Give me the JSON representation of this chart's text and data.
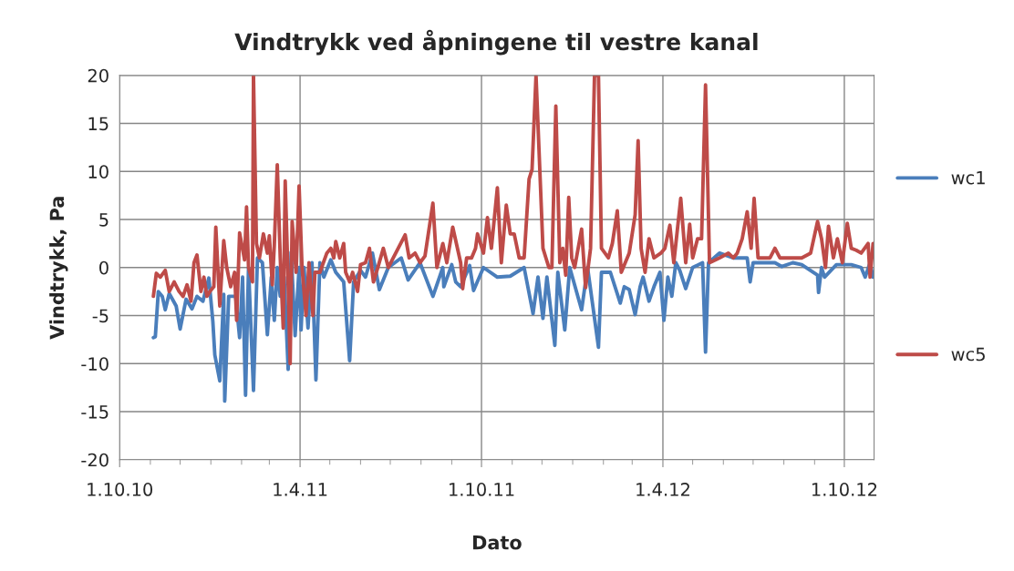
{
  "chart_data": {
    "type": "line",
    "title": "Vindtrykk ved åpningene til vestre kanal",
    "xlabel": "Dato",
    "ylabel": "Vindtrykk, Pa",
    "xlim": [
      "2010-10-01",
      "2012-10-31"
    ],
    "ylim": [
      -20,
      20
    ],
    "yticks": [
      -20,
      -15,
      -10,
      -5,
      0,
      5,
      10,
      15,
      20
    ],
    "xticks": [
      {
        "value": "2010-10-01",
        "label": "1.10.10"
      },
      {
        "value": "2010-11-01",
        "label": null
      },
      {
        "value": "2010-12-01",
        "label": null
      },
      {
        "value": "2011-01-01",
        "label": null
      },
      {
        "value": "2011-02-01",
        "label": null
      },
      {
        "value": "2011-03-01",
        "label": null
      },
      {
        "value": "2011-04-01",
        "label": "1.4.11"
      },
      {
        "value": "2011-05-01",
        "label": null
      },
      {
        "value": "2011-06-01",
        "label": null
      },
      {
        "value": "2011-07-01",
        "label": null
      },
      {
        "value": "2011-08-01",
        "label": null
      },
      {
        "value": "2011-09-01",
        "label": null
      },
      {
        "value": "2011-10-01",
        "label": "1.10.11"
      },
      {
        "value": "2011-11-01",
        "label": null
      },
      {
        "value": "2011-12-01",
        "label": null
      },
      {
        "value": "2012-01-01",
        "label": null
      },
      {
        "value": "2012-02-01",
        "label": null
      },
      {
        "value": "2012-03-01",
        "label": null
      },
      {
        "value": "2012-04-01",
        "label": "1.4.12"
      },
      {
        "value": "2012-05-01",
        "label": null
      },
      {
        "value": "2012-06-01",
        "label": null
      },
      {
        "value": "2012-07-01",
        "label": null
      },
      {
        "value": "2012-08-01",
        "label": null
      },
      {
        "value": "2012-09-01",
        "label": null
      },
      {
        "value": "2012-10-01",
        "label": "1.10.12"
      }
    ],
    "grid": true,
    "legend": "right",
    "marker": "none",
    "line_style": "solid",
    "series": [
      {
        "name": "wc1",
        "color": "#4a7ebb",
        "x": [
          "2010-11-04",
          "2010-11-06",
          "2010-11-09",
          "2010-11-13",
          "2010-11-16",
          "2010-11-20",
          "2010-11-27",
          "2010-12-01",
          "2010-12-07",
          "2010-12-13",
          "2010-12-18",
          "2010-12-24",
          "2010-12-30",
          "2011-01-03",
          "2011-01-05",
          "2011-01-10",
          "2011-01-14",
          "2011-01-15",
          "2011-01-19",
          "2011-01-26",
          "2011-01-30",
          "2011-02-02",
          "2011-02-05",
          "2011-02-08",
          "2011-02-13",
          "2011-02-17",
          "2011-02-22",
          "2011-02-27",
          "2011-03-03",
          "2011-03-06",
          "2011-03-09",
          "2011-03-12",
          "2011-03-16",
          "2011-03-20",
          "2011-03-23",
          "2011-03-27",
          "2011-03-31",
          "2011-04-02",
          "2011-04-05",
          "2011-04-09",
          "2011-04-13",
          "2011-04-17",
          "2011-04-21",
          "2011-04-25",
          "2011-05-02",
          "2011-05-07",
          "2011-05-15",
          "2011-05-21",
          "2011-05-25",
          "2011-06-01",
          "2011-06-06",
          "2011-06-13",
          "2011-06-20",
          "2011-06-29",
          "2011-07-12",
          "2011-07-19",
          "2011-07-31",
          "2011-08-13",
          "2011-08-23",
          "2011-08-24",
          "2011-09-01",
          "2011-09-05",
          "2011-09-10",
          "2011-09-19",
          "2011-09-23",
          "2011-10-03",
          "2011-10-17",
          "2011-10-30",
          "2011-11-13",
          "2011-11-22",
          "2011-11-27",
          "2011-12-02",
          "2011-12-06",
          "2011-12-14",
          "2011-12-17",
          "2011-12-24",
          "2011-12-29",
          "2012-01-10",
          "2012-01-16",
          "2012-01-27",
          "2012-01-30",
          "2012-02-08",
          "2012-02-18",
          "2012-02-22",
          "2012-02-27",
          "2012-03-04",
          "2012-03-09",
          "2012-03-12",
          "2012-03-18",
          "2012-03-23",
          "2012-03-29",
          "2012-04-02",
          "2012-04-06",
          "2012-04-10",
          "2012-04-14",
          "2012-04-18",
          "2012-04-24",
          "2012-05-01",
          "2012-05-11",
          "2012-05-14",
          "2012-05-17",
          "2012-05-28",
          "2012-06-11",
          "2012-06-25",
          "2012-06-28",
          "2012-07-01",
          "2012-07-23",
          "2012-07-30",
          "2012-08-10",
          "2012-08-19",
          "2012-09-04",
          "2012-09-05",
          "2012-09-08",
          "2012-09-11",
          "2012-09-23",
          "2012-10-08",
          "2012-10-18",
          "2012-10-22",
          "2012-10-27",
          "2012-10-30"
        ],
        "values": [
          -7.3,
          -7.2,
          -2.5,
          -3.0,
          -4.4,
          -2.7,
          -4.0,
          -6.4,
          -3.3,
          -4.3,
          -3.0,
          -3.5,
          -1.1,
          -5.6,
          -9.1,
          -11.8,
          -2.8,
          -13.9,
          -3.0,
          -3.0,
          -7.3,
          -1.0,
          -13.3,
          0,
          -12.8,
          1.0,
          0.5,
          -7.0,
          -1.0,
          -5.5,
          0,
          -3.0,
          -1.0,
          -10.6,
          1.6,
          -7.1,
          0,
          -6.5,
          0,
          -6.3,
          0.5,
          -11.7,
          0.5,
          -1.0,
          0.8,
          -0.5,
          -1.5,
          -9.7,
          -1.5,
          -0.3,
          -1.0,
          1.5,
          -2.3,
          0,
          1.0,
          -1.3,
          0.5,
          -3.0,
          0,
          -2.0,
          0.3,
          -1.5,
          -2.0,
          0.2,
          -2.4,
          0,
          -1.0,
          -0.9,
          0,
          -4.8,
          -1.0,
          -5.3,
          -1.0,
          -8.1,
          -0.5,
          -6.5,
          0,
          -4.4,
          0,
          -8.3,
          -0.5,
          -0.5,
          -3.7,
          -2.0,
          -2.3,
          -4.9,
          -2.0,
          -1.0,
          -3.5,
          -2.0,
          -0.5,
          -5.5,
          -1.0,
          -3.0,
          0.5,
          -0.3,
          -2.2,
          0,
          0.5,
          -8.8,
          0.5,
          1.5,
          1.0,
          1.0,
          -1.5,
          0.5,
          0.5,
          0.1,
          0.5,
          0.3,
          -0.8,
          -2.6,
          0,
          -1.0,
          0.3,
          0.3,
          0,
          -1.0,
          0.5,
          -1.0
        ]
      },
      {
        "name": "wc5",
        "color": "#be4b48",
        "x": [
          "2010-11-04",
          "2010-11-07",
          "2010-11-11",
          "2010-11-16",
          "2010-11-20",
          "2010-11-25",
          "2010-11-30",
          "2010-12-04",
          "2010-12-08",
          "2010-12-12",
          "2010-12-15",
          "2010-12-18",
          "2010-12-22",
          "2010-12-25",
          "2010-12-28",
          "2010-12-31",
          "2011-01-04",
          "2011-01-06",
          "2011-01-10",
          "2011-01-14",
          "2011-01-17",
          "2011-01-21",
          "2011-01-25",
          "2011-01-27",
          "2011-01-30",
          "2011-02-04",
          "2011-02-06",
          "2011-02-08",
          "2011-02-12",
          "2011-02-13",
          "2011-02-16",
          "2011-02-19",
          "2011-02-23",
          "2011-02-27",
          "2011-03-01",
          "2011-03-04",
          "2011-03-06",
          "2011-03-09",
          "2011-03-12",
          "2011-03-15",
          "2011-03-17",
          "2011-03-19",
          "2011-03-22",
          "2011-03-24",
          "2011-03-28",
          "2011-03-31",
          "2011-04-03",
          "2011-04-07",
          "2011-04-10",
          "2011-04-14",
          "2011-04-16",
          "2011-04-21",
          "2011-04-28",
          "2011-05-02",
          "2011-05-05",
          "2011-05-07",
          "2011-05-11",
          "2011-05-15",
          "2011-05-17",
          "2011-05-21",
          "2011-05-24",
          "2011-05-29",
          "2011-06-01",
          "2011-06-06",
          "2011-06-10",
          "2011-06-14",
          "2011-06-19",
          "2011-06-24",
          "2011-06-29",
          "2011-07-04",
          "2011-07-16",
          "2011-07-20",
          "2011-07-26",
          "2011-07-31",
          "2011-08-05",
          "2011-08-13",
          "2011-08-17",
          "2011-08-23",
          "2011-08-27",
          "2011-09-02",
          "2011-09-10",
          "2011-09-12",
          "2011-09-16",
          "2011-09-21",
          "2011-09-25",
          "2011-09-27",
          "2011-10-03",
          "2011-10-07",
          "2011-10-11",
          "2011-10-17",
          "2011-10-21",
          "2011-10-26",
          "2011-10-30",
          "2011-11-03",
          "2011-11-08",
          "2011-11-13",
          "2011-11-18",
          "2011-11-21",
          "2011-11-25",
          "2011-11-28",
          "2011-12-02",
          "2011-12-05",
          "2011-12-08",
          "2011-12-11",
          "2011-12-15",
          "2011-12-19",
          "2011-12-22",
          "2011-12-25",
          "2011-12-28",
          "2011-12-31",
          "2012-01-03",
          "2012-01-10",
          "2012-01-14",
          "2012-01-19",
          "2012-01-23",
          "2012-01-27",
          "2012-01-30",
          "2012-02-06",
          "2012-02-10",
          "2012-02-15",
          "2012-02-19",
          "2012-02-27",
          "2012-03-04",
          "2012-03-07",
          "2012-03-10",
          "2012-03-14",
          "2012-03-18",
          "2012-03-23",
          "2012-03-30",
          "2012-04-03",
          "2012-04-08",
          "2012-04-12",
          "2012-04-19",
          "2012-04-24",
          "2012-04-28",
          "2012-05-01",
          "2012-05-06",
          "2012-05-10",
          "2012-05-14",
          "2012-05-18",
          "2012-05-28",
          "2012-06-06",
          "2012-06-11",
          "2012-06-15",
          "2012-06-20",
          "2012-06-25",
          "2012-06-29",
          "2012-07-02",
          "2012-07-06",
          "2012-07-18",
          "2012-07-23",
          "2012-07-28",
          "2012-08-10",
          "2012-08-19",
          "2012-08-28",
          "2012-09-04",
          "2012-09-08",
          "2012-09-12",
          "2012-09-15",
          "2012-09-20",
          "2012-09-24",
          "2012-09-29",
          "2012-10-04",
          "2012-10-08",
          "2012-10-13",
          "2012-10-18",
          "2012-10-25",
          "2012-10-27",
          "2012-10-30"
        ],
        "values": [
          -3.0,
          -0.6,
          -1.0,
          -0.3,
          -2.5,
          -1.5,
          -2.5,
          -3.0,
          -1.8,
          -3.5,
          0.5,
          1.3,
          -2.5,
          -1.0,
          -3.0,
          -2.5,
          -2.0,
          4.2,
          -4.0,
          2.8,
          0,
          -2.0,
          -0.5,
          -5.5,
          3.6,
          0.8,
          6.3,
          0,
          -1.5,
          20,
          2.5,
          1.0,
          3.5,
          1.5,
          3.3,
          -1.8,
          2.3,
          10.7,
          1.0,
          -6.3,
          9.0,
          2.0,
          -10.0,
          4.8,
          -0.5,
          8.5,
          0,
          -5.0,
          0.5,
          -5.0,
          -0.5,
          -0.5,
          1.5,
          2.0,
          1.0,
          2.7,
          1.0,
          2.5,
          -0.5,
          -1.5,
          -0.5,
          -2.5,
          0.3,
          0.5,
          2.0,
          -1.5,
          0.2,
          2.0,
          0,
          1.0,
          3.4,
          1.0,
          1.5,
          0.5,
          1.2,
          6.7,
          0,
          2.5,
          0.5,
          4.2,
          0.5,
          -2.2,
          1.0,
          1.0,
          2.0,
          3.5,
          1.5,
          5.2,
          2.0,
          8.3,
          0.5,
          6.5,
          3.5,
          3.5,
          1.0,
          1.0,
          9.2,
          10.2,
          20,
          12.3,
          2.0,
          1.0,
          0,
          0,
          16.8,
          0.5,
          2.0,
          -0.8,
          7.3,
          1.0,
          0,
          4.0,
          -2.1,
          2.0,
          20,
          20,
          2.0,
          1.0,
          2.5,
          5.9,
          -0.5,
          1.5,
          5.5,
          13.2,
          2.0,
          -0.5,
          3.0,
          1.0,
          1.5,
          2.0,
          4.4,
          0.5,
          7.2,
          0.5,
          4.5,
          1.0,
          3.0,
          3.0,
          19.0,
          0.5,
          1.0,
          1.5,
          1.0,
          1.5,
          3.0,
          5.8,
          2.0,
          7.2,
          1.0,
          1.0,
          2.0,
          1.0,
          1.0,
          1.0,
          1.5,
          4.8,
          3.0,
          0,
          4.3,
          1.0,
          3.0,
          0.5,
          4.6,
          2.0,
          1.8,
          1.5,
          2.5,
          -1.0,
          2.5
        ]
      }
    ]
  }
}
